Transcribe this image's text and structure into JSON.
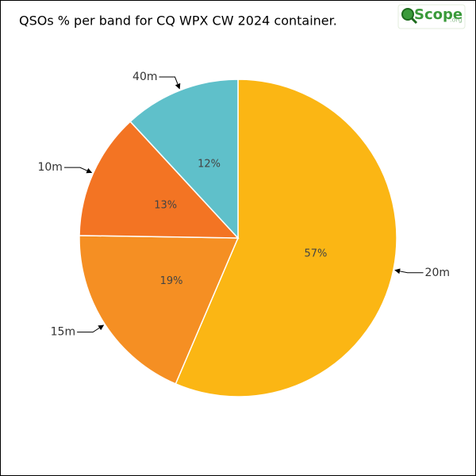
{
  "chart_data": {
    "type": "pie",
    "title": "QSOs % per band for CQ WPX CW 2024 container.",
    "logo_text": "Scope",
    "logo_suffix": ".org",
    "categories": [
      "20m",
      "15m",
      "10m",
      "40m"
    ],
    "values": [
      57,
      19,
      13,
      12
    ],
    "value_labels": [
      "57%",
      "19%",
      "13%",
      "12%"
    ],
    "colors": [
      "#fbb614",
      "#f58f23",
      "#f37423",
      "#5fc0ca"
    ]
  }
}
